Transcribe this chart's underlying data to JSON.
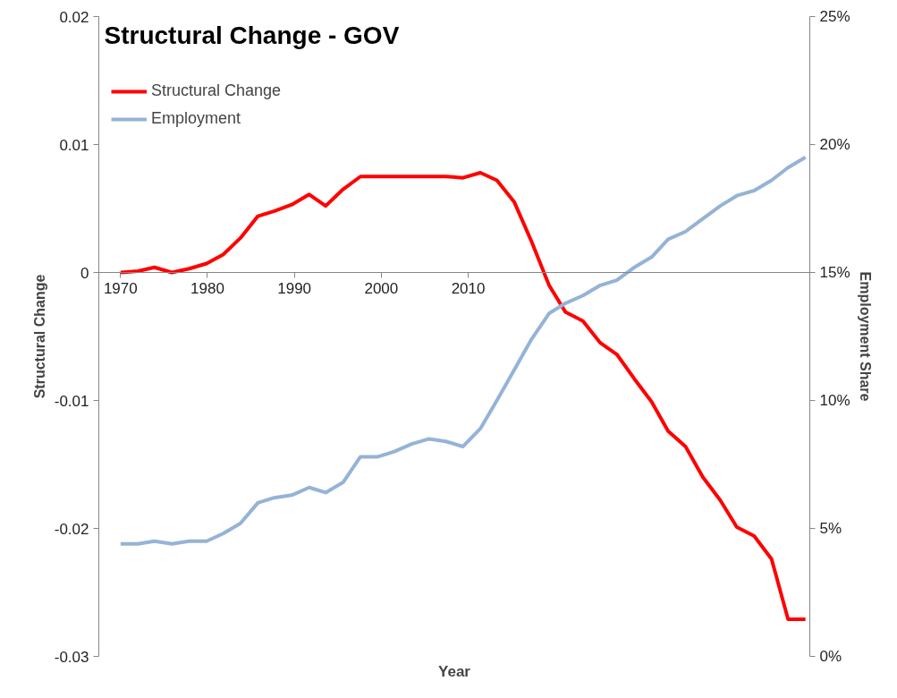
{
  "chart_data": {
    "type": "line",
    "title": "Structural Change - GOV",
    "xlabel": "Year",
    "ylabel": "Structural Change",
    "y2label": "Employment Share",
    "x": [
      1970.0,
      1972.0,
      1973.9,
      1975.9,
      1977.9,
      1979.9,
      1981.8,
      1983.8,
      1985.8,
      1987.7,
      1989.7,
      1991.7,
      1993.6,
      1995.6,
      1997.6,
      1999.6,
      2001.5,
      2003.5,
      2005.5,
      2007.4,
      2009.4,
      2011.4,
      2013.3,
      2015.3,
      2017.3,
      2019.3,
      2021.2,
      2023.2,
      2025.2,
      2027.1,
      2029.1,
      2031.1,
      2033.0,
      2035.0,
      2037.0,
      2039.0,
      2040.9,
      2042.9,
      2044.9,
      2046.8,
      2048.8
    ],
    "series": [
      {
        "name": "Structural Change",
        "color": "#ff0000",
        "values": [
          0,
          0.0001,
          0.0004,
          0,
          0.0003,
          0.0007,
          0.0014,
          0.0027,
          0.0044,
          0.0048,
          0.0053,
          0.0061,
          0.0052,
          0.0065,
          0.0075,
          0.0075,
          0.0075,
          0.0075,
          0.0075,
          0.0075,
          0.0074,
          0.0078,
          0.0072,
          0.0055,
          0.0024,
          -0.001,
          -0.0031,
          -0.0038,
          -0.0055,
          -0.0064,
          -0.0083,
          -0.0101,
          -0.0124,
          -0.0136,
          -0.016,
          -0.0178,
          -0.0199,
          -0.0206,
          -0.0224,
          -0.0271,
          -0.0271
        ]
      },
      {
        "name": "Employment",
        "color": "#95b3d7",
        "axis": "y2",
        "values": [
          4.4,
          4.4,
          4.5,
          4.4,
          4.5,
          4.5,
          4.8,
          5.2,
          6.0,
          6.2,
          6.3,
          6.6,
          6.4,
          6.8,
          7.8,
          7.8,
          8.0,
          8.3,
          8.5,
          8.4,
          8.2,
          8.9,
          10.0,
          11.2,
          12.4,
          13.4,
          13.8,
          14.1,
          14.5,
          14.7,
          15.2,
          15.6,
          16.3,
          16.6,
          17.1,
          17.6,
          18.0,
          18.2,
          18.6,
          19.1,
          19.5
        ]
      }
    ],
    "xlim": [
      1967.5,
      2049.3
    ],
    "xticks": [
      1970,
      1980,
      1990,
      2000,
      2010
    ],
    "ylim": [
      -0.03,
      0.02
    ],
    "yticks": [
      -0.03,
      -0.02,
      -0.01,
      0,
      0.01,
      0.02
    ],
    "y2lim": [
      0,
      25
    ],
    "y2ticks": [
      {
        "value": 0,
        "label": "0%"
      },
      {
        "value": 5,
        "label": "5%"
      },
      {
        "value": 10,
        "label": "10%"
      },
      {
        "value": 15,
        "label": "15%"
      },
      {
        "value": 20,
        "label": "20%"
      },
      {
        "value": 25,
        "label": "25%"
      }
    ],
    "grid": false,
    "legend": "top left",
    "marker": "none",
    "line_style": "solid"
  }
}
